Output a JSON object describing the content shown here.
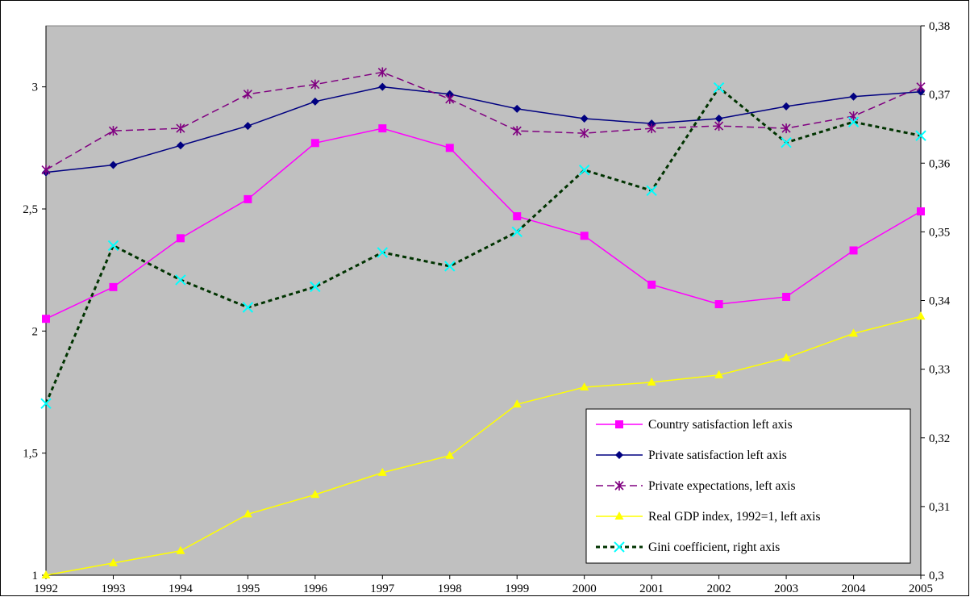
{
  "chart_data": {
    "type": "line",
    "x": [
      1992,
      1993,
      1994,
      1995,
      1996,
      1997,
      1998,
      1999,
      2000,
      2001,
      2002,
      2003,
      2004,
      2005
    ],
    "x_tick_labels": [
      "1992",
      "1993",
      "1994",
      "1995",
      "1996",
      "1997",
      "1998",
      "1999",
      "2000",
      "2001",
      "2002",
      "2003",
      "2004",
      "2005"
    ],
    "y_left": {
      "lim": [
        1,
        3.25
      ],
      "ticks": [
        1,
        1.5,
        2,
        2.5,
        3
      ],
      "tick_labels": [
        "1",
        "1,5",
        "2",
        "2,5",
        "3"
      ]
    },
    "y_right": {
      "lim": [
        0.3,
        0.38
      ],
      "ticks": [
        0.3,
        0.31,
        0.32,
        0.33,
        0.34,
        0.35,
        0.36,
        0.37,
        0.38
      ],
      "tick_labels": [
        "0,3",
        "0,31",
        "0,32",
        "0,33",
        "0,34",
        "0,35",
        "0,36",
        "0,37",
        "0,38"
      ]
    },
    "plot_background": "#c0c0c0",
    "grid": false,
    "legend_position": "bottom-right",
    "series": [
      {
        "name": "Country satisfaction left axis",
        "axis": "left",
        "color": "#ff00ff",
        "marker": "square",
        "dash": "solid",
        "values": [
          2.05,
          2.18,
          2.38,
          2.54,
          2.77,
          2.83,
          2.75,
          2.47,
          2.39,
          2.19,
          2.11,
          2.14,
          2.33,
          2.49
        ]
      },
      {
        "name": "Private satisfaction left axis",
        "axis": "left",
        "color": "#000080",
        "marker": "diamond",
        "dash": "solid",
        "values": [
          2.65,
          2.68,
          2.76,
          2.84,
          2.94,
          3.0,
          2.97,
          2.91,
          2.87,
          2.85,
          2.87,
          2.92,
          2.96,
          2.98
        ]
      },
      {
        "name": "Private expectations, left axis",
        "axis": "left",
        "color": "#800080",
        "marker": "star",
        "dash": "dashed",
        "values": [
          2.66,
          2.82,
          2.83,
          2.97,
          3.01,
          3.06,
          2.95,
          2.82,
          2.81,
          2.83,
          2.84,
          2.83,
          2.88,
          3.0
        ]
      },
      {
        "name": "Real GDP index, 1992=1, left axis",
        "axis": "left",
        "color": "#ffff00",
        "marker": "triangle",
        "dash": "solid",
        "values": [
          1.0,
          1.05,
          1.1,
          1.25,
          1.33,
          1.42,
          1.49,
          1.7,
          1.77,
          1.79,
          1.82,
          1.89,
          1.99,
          2.06
        ]
      },
      {
        "name": "Gini coefficient, right axis",
        "axis": "right",
        "color": "#00ffff",
        "line_color": "#003300",
        "marker": "x",
        "dash": "dotted",
        "values": [
          0.325,
          0.348,
          0.343,
          0.339,
          0.342,
          0.347,
          0.345,
          0.35,
          0.359,
          0.356,
          0.371,
          0.363,
          0.366,
          0.364
        ]
      }
    ]
  }
}
